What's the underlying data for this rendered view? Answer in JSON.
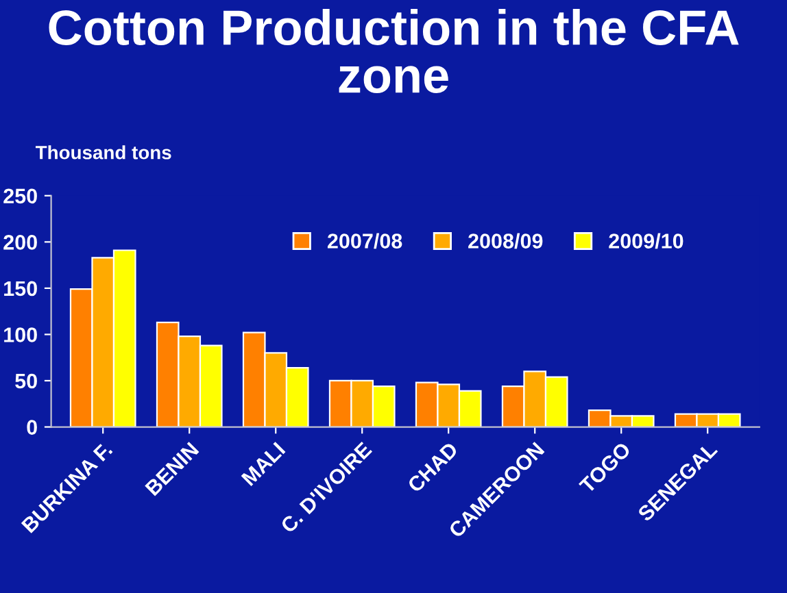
{
  "chart_data": {
    "type": "bar",
    "title": "Cotton Production in the CFA zone",
    "ylabel": "Thousand tons",
    "categories": [
      "BURKINA F.",
      "BENIN",
      "MALI",
      "C. D'IVOIRE",
      "CHAD",
      "CAMEROON",
      "TOGO",
      "SENEGAL"
    ],
    "series": [
      {
        "name": "2007/08",
        "color": "#ff8000",
        "values": [
          149,
          113,
          102,
          50,
          48,
          44,
          18,
          14
        ]
      },
      {
        "name": "2008/09",
        "color": "#ffaa00",
        "values": [
          183,
          98,
          80,
          50,
          46,
          60,
          12,
          14
        ]
      },
      {
        "name": "2009/10",
        "color": "#ffff00",
        "values": [
          191,
          88,
          64,
          44,
          39,
          54,
          12,
          14
        ]
      }
    ],
    "ylim": [
      0,
      250
    ],
    "yticks": [
      0,
      50,
      100,
      150,
      200,
      250
    ],
    "grid": false,
    "legend": "top right"
  }
}
